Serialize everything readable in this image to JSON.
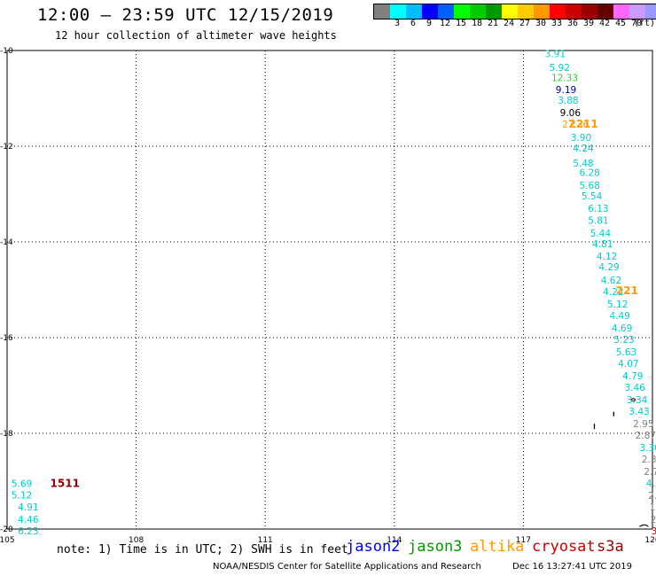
{
  "header": {
    "title": "12:00 – 23:59 UTC 12/15/2019",
    "subtitle": "12 hour collection of altimeter wave heights"
  },
  "colorbar": {
    "colors": [
      "#808080",
      "#00ffff",
      "#00bfff",
      "#0000ff",
      "#0060ff",
      "#00ff00",
      "#00cc00",
      "#009900",
      "#ffff00",
      "#ffcc00",
      "#ff9900",
      "#ff0000",
      "#cc0000",
      "#990000",
      "#660000",
      "#ff66ff",
      "#cc99ff",
      "#9999ff",
      "#000000"
    ],
    "labels": [
      "3",
      "6",
      "9",
      "12",
      "15",
      "18",
      "21",
      "24",
      "27",
      "30",
      "33",
      "36",
      "39",
      "42",
      "45",
      "70"
    ],
    "unit": "(ft)"
  },
  "map": {
    "lon_ticks": [
      "105",
      "108",
      "111",
      "114",
      "117",
      "120"
    ],
    "lat_ticks": [
      "-10",
      "-12",
      "-14",
      "-16",
      "-18",
      "-20"
    ],
    "lon_range": [
      105,
      120
    ],
    "lat_range": [
      -20,
      -10
    ],
    "grid": "dotted"
  },
  "chart_data": {
    "type": "scatter",
    "x_label": "",
    "y_label": "",
    "xlim": [
      105,
      120
    ],
    "ylim": [
      -20,
      -10
    ],
    "points": [
      {
        "lon": 117.5,
        "lat": -10.05,
        "v": "3.91",
        "c": "#00cccc"
      },
      {
        "lon": 117.6,
        "lat": -10.33,
        "v": "5.92",
        "c": "#00cccc"
      },
      {
        "lon": 117.65,
        "lat": -10.55,
        "v": "12.33",
        "c": "#33cc33"
      },
      {
        "lon": 117.75,
        "lat": -10.8,
        "v": "9.19",
        "c": "#000099"
      },
      {
        "lon": 117.8,
        "lat": -11.02,
        "v": "3.88",
        "c": "#00cccc"
      },
      {
        "lon": 117.85,
        "lat": -11.28,
        "v": "9.06",
        "c": "#000000"
      },
      {
        "lon": 117.9,
        "lat": -11.52,
        "v": "27.36",
        "c": "#ff9900"
      },
      {
        "lon": 118.1,
        "lat": -11.8,
        "v": "3.90",
        "c": "#00cccc"
      },
      {
        "lon": 118.15,
        "lat": -12.02,
        "v": "4.24",
        "c": "#00cccc"
      },
      {
        "lon": 118.15,
        "lat": -12.33,
        "v": "5.48",
        "c": "#00cccc"
      },
      {
        "lon": 118.3,
        "lat": -12.53,
        "v": "6.28",
        "c": "#00cccc"
      },
      {
        "lon": 118.3,
        "lat": -12.8,
        "v": "5.68",
        "c": "#00cccc"
      },
      {
        "lon": 118.35,
        "lat": -13.02,
        "v": "5.54",
        "c": "#00cccc"
      },
      {
        "lon": 118.5,
        "lat": -13.28,
        "v": "6.13",
        "c": "#00cccc"
      },
      {
        "lon": 118.5,
        "lat": -13.53,
        "v": "5.81",
        "c": "#00cccc"
      },
      {
        "lon": 118.55,
        "lat": -13.8,
        "v": "5.44",
        "c": "#00cccc"
      },
      {
        "lon": 118.6,
        "lat": -14.02,
        "v": "4.81",
        "c": "#00cccc"
      },
      {
        "lon": 118.7,
        "lat": -14.28,
        "v": "4.12",
        "c": "#00cccc"
      },
      {
        "lon": 118.75,
        "lat": -14.5,
        "v": "4.29",
        "c": "#00cccc"
      },
      {
        "lon": 118.8,
        "lat": -14.78,
        "v": "4.62",
        "c": "#00cccc"
      },
      {
        "lon": 118.85,
        "lat": -15.02,
        "v": "4.22",
        "c": "#00cccc"
      },
      {
        "lon": 118.95,
        "lat": -15.28,
        "v": "5.12",
        "c": "#00cccc"
      },
      {
        "lon": 119.0,
        "lat": -15.52,
        "v": "4.49",
        "c": "#00cccc"
      },
      {
        "lon": 119.05,
        "lat": -15.78,
        "v": "4.69",
        "c": "#00cccc"
      },
      {
        "lon": 119.1,
        "lat": -16.02,
        "v": "5.23",
        "c": "#00cccc"
      },
      {
        "lon": 119.15,
        "lat": -16.28,
        "v": "5.63",
        "c": "#00cccc"
      },
      {
        "lon": 119.2,
        "lat": -16.52,
        "v": "4.07",
        "c": "#00cccc"
      },
      {
        "lon": 119.3,
        "lat": -16.78,
        "v": "4.79",
        "c": "#00cccc"
      },
      {
        "lon": 119.35,
        "lat": -17.02,
        "v": "3.46",
        "c": "#00cccc"
      },
      {
        "lon": 119.4,
        "lat": -17.28,
        "v": "3.34",
        "c": "#00cccc"
      },
      {
        "lon": 119.45,
        "lat": -17.52,
        "v": "3.43",
        "c": "#00cccc"
      },
      {
        "lon": 119.55,
        "lat": -17.78,
        "v": "2.95",
        "c": "#808080"
      },
      {
        "lon": 119.6,
        "lat": -18.02,
        "v": "2.87",
        "c": "#808080"
      },
      {
        "lon": 119.7,
        "lat": -18.28,
        "v": "3.30",
        "c": "#00cccc"
      },
      {
        "lon": 119.75,
        "lat": -18.52,
        "v": "2.39",
        "c": "#808080"
      },
      {
        "lon": 119.8,
        "lat": -18.78,
        "v": "2.7",
        "c": "#808080"
      },
      {
        "lon": 119.85,
        "lat": -19.02,
        "v": "4.3",
        "c": "#00cccc"
      },
      {
        "lon": 119.9,
        "lat": -19.28,
        "v": "2.",
        "c": "#808080"
      },
      {
        "lon": 119.93,
        "lat": -19.52,
        "v": "1.",
        "c": "#808080"
      },
      {
        "lon": 119.95,
        "lat": -19.78,
        "v": "2",
        "c": "#808080"
      },
      {
        "lon": 119.97,
        "lat": -20.02,
        "v": "3",
        "c": "#cc0000"
      },
      {
        "lon": 105.1,
        "lat": -19.03,
        "v": "5.69",
        "c": "#00cccc"
      },
      {
        "lon": 105.1,
        "lat": -19.27,
        "v": "5.12",
        "c": "#00cccc"
      },
      {
        "lon": 105.25,
        "lat": -19.52,
        "v": "4.91",
        "c": "#00cccc"
      },
      {
        "lon": 105.25,
        "lat": -19.78,
        "v": "4.46",
        "c": "#00cccc"
      },
      {
        "lon": 105.25,
        "lat": -20.02,
        "v": "6.23",
        "c": "#00cccc"
      }
    ],
    "times": [
      {
        "lon": 118.05,
        "lat": -11.52,
        "v": "2211",
        "c": "#ff9900"
      },
      {
        "lon": 119.15,
        "lat": -15.0,
        "v": "221",
        "c": "#ff9900"
      },
      {
        "lon": 106.0,
        "lat": -19.03,
        "v": "1511",
        "c": "#990000"
      }
    ]
  },
  "note": "note: 1) Time is in UTC; 2) SWH is in feet",
  "missions": [
    {
      "name": "jason2",
      "color": "#0000ff"
    },
    {
      "name": "jason3",
      "color": "#009900"
    },
    {
      "name": "altika",
      "color": "#ff9900"
    },
    {
      "name": "cryosat",
      "color": "#cc0000"
    },
    {
      "name": "s3a",
      "color": "#990000"
    }
  ],
  "footer": {
    "credit": "NOAA/NESDIS Center for Satellite Applications and Research",
    "timestamp": "Dec 16 13:27:41 UTC 2019"
  }
}
